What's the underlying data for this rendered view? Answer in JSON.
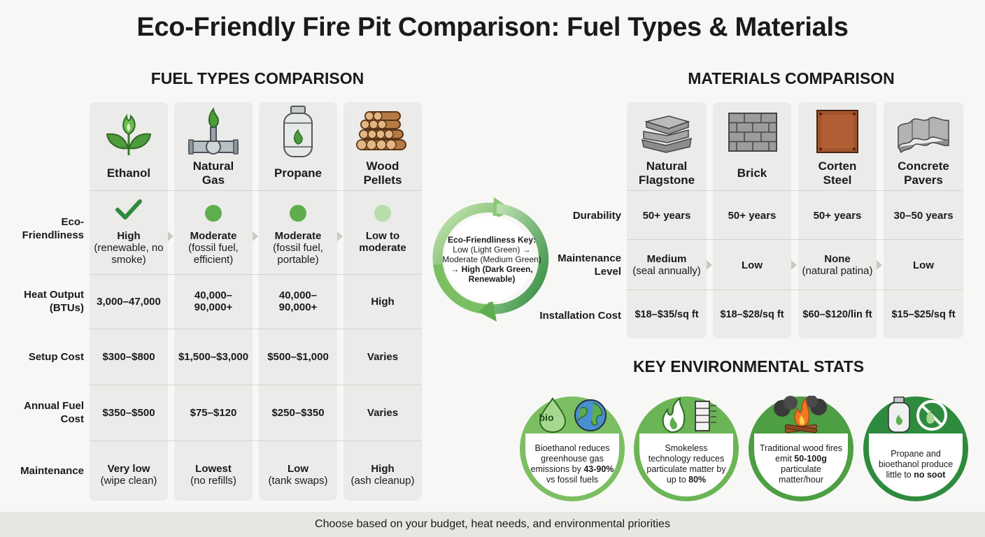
{
  "title": "Eco-Friendly Fire Pit Comparison: Fuel Types & Materials",
  "fuel": {
    "section_title": "FUEL TYPES COMPARISON",
    "columns": [
      "Ethanol",
      "Natural Gas",
      "Propane",
      "Wood Pellets"
    ],
    "row_labels": [
      "Eco-Friendliness",
      "Heat Output (BTUs)",
      "Setup Cost",
      "Annual Fuel Cost",
      "Maintenance"
    ],
    "eco": [
      {
        "rating": "High",
        "note": "(renewable, no smoke)"
      },
      {
        "rating": "Moderate",
        "note": "(fossil fuel, efficient)"
      },
      {
        "rating": "Moderate",
        "note": "(fossil fuel, portable)"
      },
      {
        "rating": "Low to moderate",
        "note": ""
      }
    ],
    "heat": [
      "3,000–47,000",
      "40,000–90,000+",
      "40,000–90,000+",
      "High"
    ],
    "setup": [
      "$300–$800",
      "$1,500–$3,000",
      "$500–$1,000",
      "Varies"
    ],
    "annual": [
      "$350–$500",
      "$75–$120",
      "$250–$350",
      "Varies"
    ],
    "maintenance": [
      {
        "main": "Very low",
        "note": "(wipe clean)"
      },
      {
        "main": "Lowest",
        "note": "(no refills)"
      },
      {
        "main": "Low",
        "note": "(tank swaps)"
      },
      {
        "main": "High",
        "note": "(ash cleanup)"
      }
    ]
  },
  "key": {
    "title": "Eco-Friendliness Key:",
    "line1": "Low (Light Green) →",
    "line2": "Moderate (Medium Green)",
    "line3": "→ High (Dark Green, Renewable)"
  },
  "materials": {
    "section_title": "MATERIALS COMPARISON",
    "columns": [
      "Natural Flagstone",
      "Brick",
      "Corten Steel",
      "Concrete Pavers"
    ],
    "row_labels": [
      "Durability",
      "Maintenance Level",
      "Installation Cost"
    ],
    "durability": [
      "50+ years",
      "50+ years",
      "50+ years",
      "30–50 years"
    ],
    "maintenance": [
      {
        "main": "Medium",
        "note": "(seal annually)"
      },
      {
        "main": "Low",
        "note": ""
      },
      {
        "main": "None",
        "note": "(natural patina)"
      },
      {
        "main": "Low",
        "note": ""
      }
    ],
    "cost": [
      "$18–$35/sq ft",
      "$18–$28/sq ft",
      "$60–$120/lin ft",
      "$15–$25/sq ft"
    ]
  },
  "stats": {
    "section_title": "KEY ENVIRONMENTAL STATS",
    "items": [
      {
        "pre": "Bioethanol reduces greenhouse gas emissions by ",
        "bold": "43-90%",
        "post": " vs fossil fuels"
      },
      {
        "pre": "Smokeless technology reduces particulate matter by up to ",
        "bold": "80%",
        "post": ""
      },
      {
        "pre": "Traditional wood fires emit ",
        "bold": "50-100g",
        "post": " particulate matter/hour"
      },
      {
        "pre": "Propane and bioethanol produce little to ",
        "bold": "no soot",
        "post": ""
      }
    ],
    "bio_label": "bio"
  },
  "footer": "Choose based on your budget, heat needs, and environmental priorities",
  "colors": {
    "dark_green": "#2e8b3e",
    "medium_green": "#5fad4e",
    "light_green": "#b8ddaa",
    "column_bg": "#ebebe9"
  },
  "icons": [
    "leaf-flame-icon",
    "gas-pipe-icon",
    "propane-tank-icon",
    "wood-logs-icon",
    "flagstone-icon",
    "brick-icon",
    "corten-steel-icon",
    "concrete-pavers-icon",
    "bio-drop-globe-icon",
    "smokeless-filter-icon",
    "campfire-smoke-icon",
    "tank-no-soot-icon"
  ]
}
